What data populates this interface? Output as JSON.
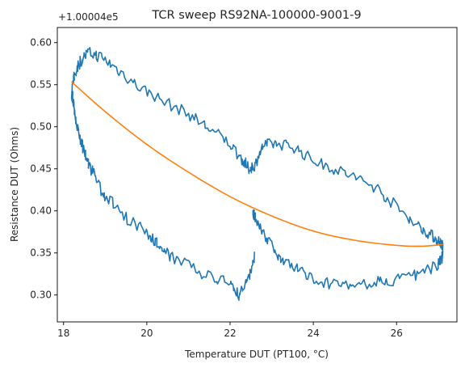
{
  "chart_data": {
    "type": "line",
    "title": "TCR sweep RS92NA-100000-9001-9",
    "xlabel": "Temperature DUT (PT100, °C)",
    "ylabel": "Resistance DUT (Ohms)",
    "y_offset_label": "+1.00004e5",
    "xlim": [
      17.85,
      27.45
    ],
    "ylim": [
      0.268,
      0.618
    ],
    "x_ticks": [
      18,
      20,
      22,
      24,
      26
    ],
    "x_tick_labels": [
      "18",
      "20",
      "22",
      "24",
      "26"
    ],
    "y_ticks": [
      0.3,
      0.35,
      0.4,
      0.45,
      0.5,
      0.55,
      0.6
    ],
    "y_tick_labels": [
      "0.30",
      "0.35",
      "0.40",
      "0.45",
      "0.50",
      "0.55",
      "0.60"
    ],
    "grid": false,
    "colors": {
      "measured": "#1f77b4",
      "fit": "#ff7f0e"
    },
    "series": [
      {
        "key": "measured",
        "style": "noisy-loop",
        "points": [
          [
            22.6,
            0.345
          ],
          [
            22.4,
            0.315
          ],
          [
            22.2,
            0.3
          ],
          [
            22.0,
            0.315
          ],
          [
            21.5,
            0.322
          ],
          [
            21.0,
            0.335
          ],
          [
            20.5,
            0.348
          ],
          [
            20.2,
            0.362
          ],
          [
            20.0,
            0.375
          ],
          [
            19.5,
            0.392
          ],
          [
            19.0,
            0.418
          ],
          [
            18.8,
            0.435
          ],
          [
            18.6,
            0.455
          ],
          [
            18.5,
            0.47
          ],
          [
            18.35,
            0.495
          ],
          [
            18.25,
            0.52
          ],
          [
            18.2,
            0.54
          ],
          [
            18.25,
            0.56
          ],
          [
            18.4,
            0.578
          ],
          [
            18.6,
            0.588
          ],
          [
            18.9,
            0.583
          ],
          [
            19.3,
            0.568
          ],
          [
            19.8,
            0.548
          ],
          [
            20.3,
            0.533
          ],
          [
            21.0,
            0.515
          ],
          [
            21.5,
            0.498
          ],
          [
            22.0,
            0.48
          ],
          [
            22.3,
            0.46
          ],
          [
            22.45,
            0.45
          ],
          [
            22.6,
            0.455
          ],
          [
            22.8,
            0.478
          ],
          [
            23.1,
            0.48
          ],
          [
            23.5,
            0.477
          ],
          [
            24.0,
            0.46
          ],
          [
            24.5,
            0.45
          ],
          [
            25.0,
            0.44
          ],
          [
            25.5,
            0.428
          ],
          [
            26.0,
            0.405
          ],
          [
            26.5,
            0.383
          ],
          [
            26.8,
            0.372
          ],
          [
            27.0,
            0.365
          ],
          [
            27.1,
            0.36
          ],
          [
            27.1,
            0.345
          ],
          [
            27.0,
            0.335
          ],
          [
            26.5,
            0.325
          ],
          [
            26.0,
            0.318
          ],
          [
            25.5,
            0.315
          ],
          [
            25.0,
            0.312
          ],
          [
            24.5,
            0.313
          ],
          [
            24.0,
            0.318
          ],
          [
            23.6,
            0.33
          ],
          [
            23.2,
            0.345
          ],
          [
            22.9,
            0.365
          ],
          [
            22.6,
            0.39
          ],
          [
            22.55,
            0.4
          ]
        ]
      },
      {
        "key": "fit",
        "style": "smooth",
        "points": [
          [
            18.2,
            0.553
          ],
          [
            19.0,
            0.518
          ],
          [
            20.0,
            0.479
          ],
          [
            21.0,
            0.446
          ],
          [
            22.0,
            0.417
          ],
          [
            23.0,
            0.394
          ],
          [
            24.0,
            0.376
          ],
          [
            25.0,
            0.365
          ],
          [
            26.0,
            0.359
          ],
          [
            26.6,
            0.358
          ],
          [
            27.1,
            0.36
          ]
        ]
      }
    ]
  }
}
